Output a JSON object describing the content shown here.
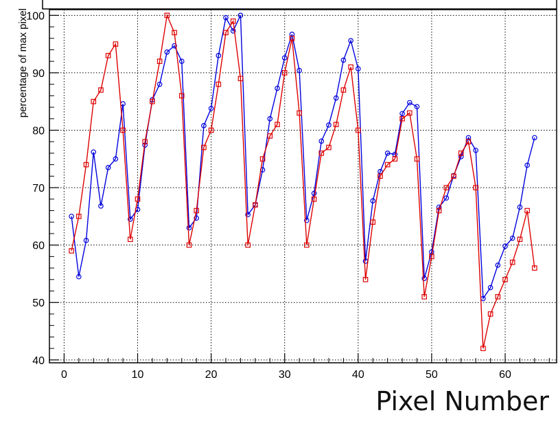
{
  "chart_data": {
    "type": "line",
    "title": "",
    "xlabel": "Pixel Number",
    "ylabel": "percentage of max pixel",
    "xlim": [
      -2,
      67
    ],
    "ylim": [
      39.5,
      101
    ],
    "grid": true,
    "x_ticks": [
      "0",
      "10",
      "20",
      "30",
      "40",
      "50",
      "60"
    ],
    "y_ticks": [
      "40",
      "50",
      "60",
      "70",
      "80",
      "90",
      "100"
    ],
    "x": [
      1,
      2,
      3,
      4,
      5,
      6,
      7,
      8,
      9,
      10,
      11,
      12,
      13,
      14,
      15,
      16,
      17,
      18,
      19,
      20,
      21,
      22,
      23,
      24,
      25,
      26,
      27,
      28,
      29,
      30,
      31,
      32,
      33,
      34,
      35,
      36,
      37,
      38,
      39,
      40,
      41,
      42,
      43,
      44,
      45,
      46,
      47,
      48,
      49,
      50,
      51,
      52,
      53,
      54,
      55,
      56,
      57,
      58,
      59,
      60,
      61,
      62,
      63,
      64
    ],
    "series": [
      {
        "color": "#0000dd",
        "marker": "circle",
        "values": [
          65,
          54.5,
          60.8,
          76.2,
          66.8,
          73.5,
          75,
          84.6,
          64.5,
          66.2,
          77.4,
          85.3,
          88,
          93.6,
          94.7,
          92,
          63,
          64.7,
          80.8,
          83.8,
          93,
          99.6,
          97.3,
          100,
          65.3,
          67,
          73.1,
          82,
          87.3,
          92.6,
          96.7,
          90.4,
          64.3,
          69,
          78.1,
          80.9,
          85.6,
          92.2,
          95.6,
          90.7,
          57.2,
          67.7,
          72.8,
          76,
          75.8,
          82.9,
          84.8,
          84.1,
          54.2,
          58.8,
          66.6,
          68.2,
          72.1,
          75.4,
          78.7,
          76.5,
          50.7,
          52.6,
          56.5,
          59.8,
          61.2,
          66.6,
          73.9,
          78.7
        ]
      },
      {
        "color": "#dd0000",
        "marker": "square",
        "values": [
          59,
          65,
          74,
          85,
          87,
          93,
          95,
          80,
          61,
          68,
          78,
          85,
          92,
          100,
          97,
          86,
          60,
          66,
          77,
          80,
          88,
          97,
          99,
          89,
          60,
          67,
          75,
          79,
          81,
          90,
          96,
          83,
          60,
          68,
          76,
          77,
          81,
          87,
          91,
          80,
          54,
          64,
          72,
          74,
          75,
          82,
          83,
          75,
          51,
          58,
          66,
          70,
          72,
          76,
          78,
          70,
          42,
          48,
          51,
          54,
          57,
          61,
          66,
          56
        ]
      }
    ]
  }
}
